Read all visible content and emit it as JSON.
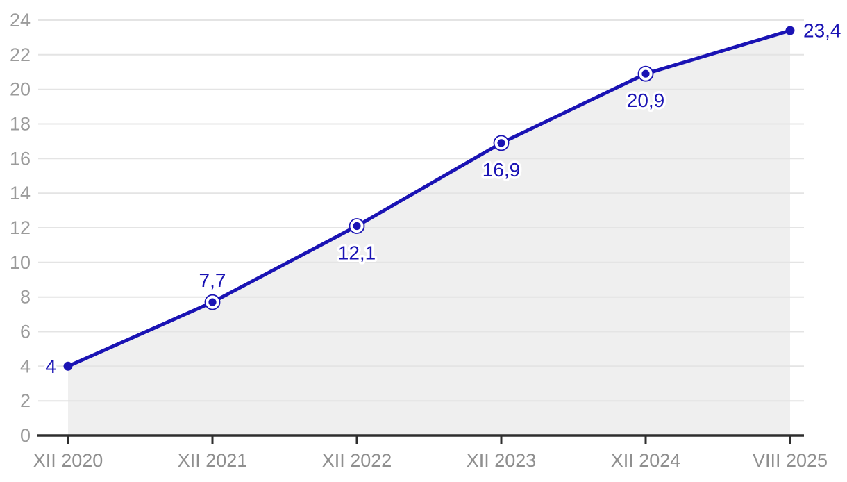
{
  "chart_data": {
    "type": "line",
    "title": "",
    "xlabel": "",
    "ylabel": "",
    "x_categories": [
      "XII 2020",
      "XII 2021",
      "XII 2022",
      "XII 2023",
      "XII 2024",
      "VIII 2025"
    ],
    "series": [
      {
        "name": "value",
        "values": [
          4,
          7.7,
          12.1,
          16.9,
          20.9,
          23.4
        ],
        "point_labels": [
          "4",
          "7,7",
          "12,1",
          "16,9",
          "20,9",
          "23,4"
        ],
        "label_positions": [
          "left",
          "above",
          "below",
          "below",
          "below",
          "right"
        ],
        "marker_styles": [
          "dot",
          "ring",
          "ring",
          "ring",
          "ring",
          "dot"
        ]
      }
    ],
    "y_ticks": [
      0,
      2,
      4,
      6,
      8,
      10,
      12,
      14,
      16,
      18,
      20,
      22,
      24
    ],
    "ylim": [
      0,
      24
    ],
    "grid": "horizontal",
    "legend": "none",
    "area_under_line": true,
    "decimal_separator": ",",
    "colors": {
      "line": "#1a13b4",
      "marker": "#1a13b4",
      "data_label": "#1a13b4",
      "area_fill": "#efefef",
      "gridline": "#e4e4e4",
      "axis_line": "#2e2e2e",
      "y_tick_label": "#9b9b9b",
      "x_tick_label": "#8f8f8f",
      "background": "#ffffff"
    }
  }
}
